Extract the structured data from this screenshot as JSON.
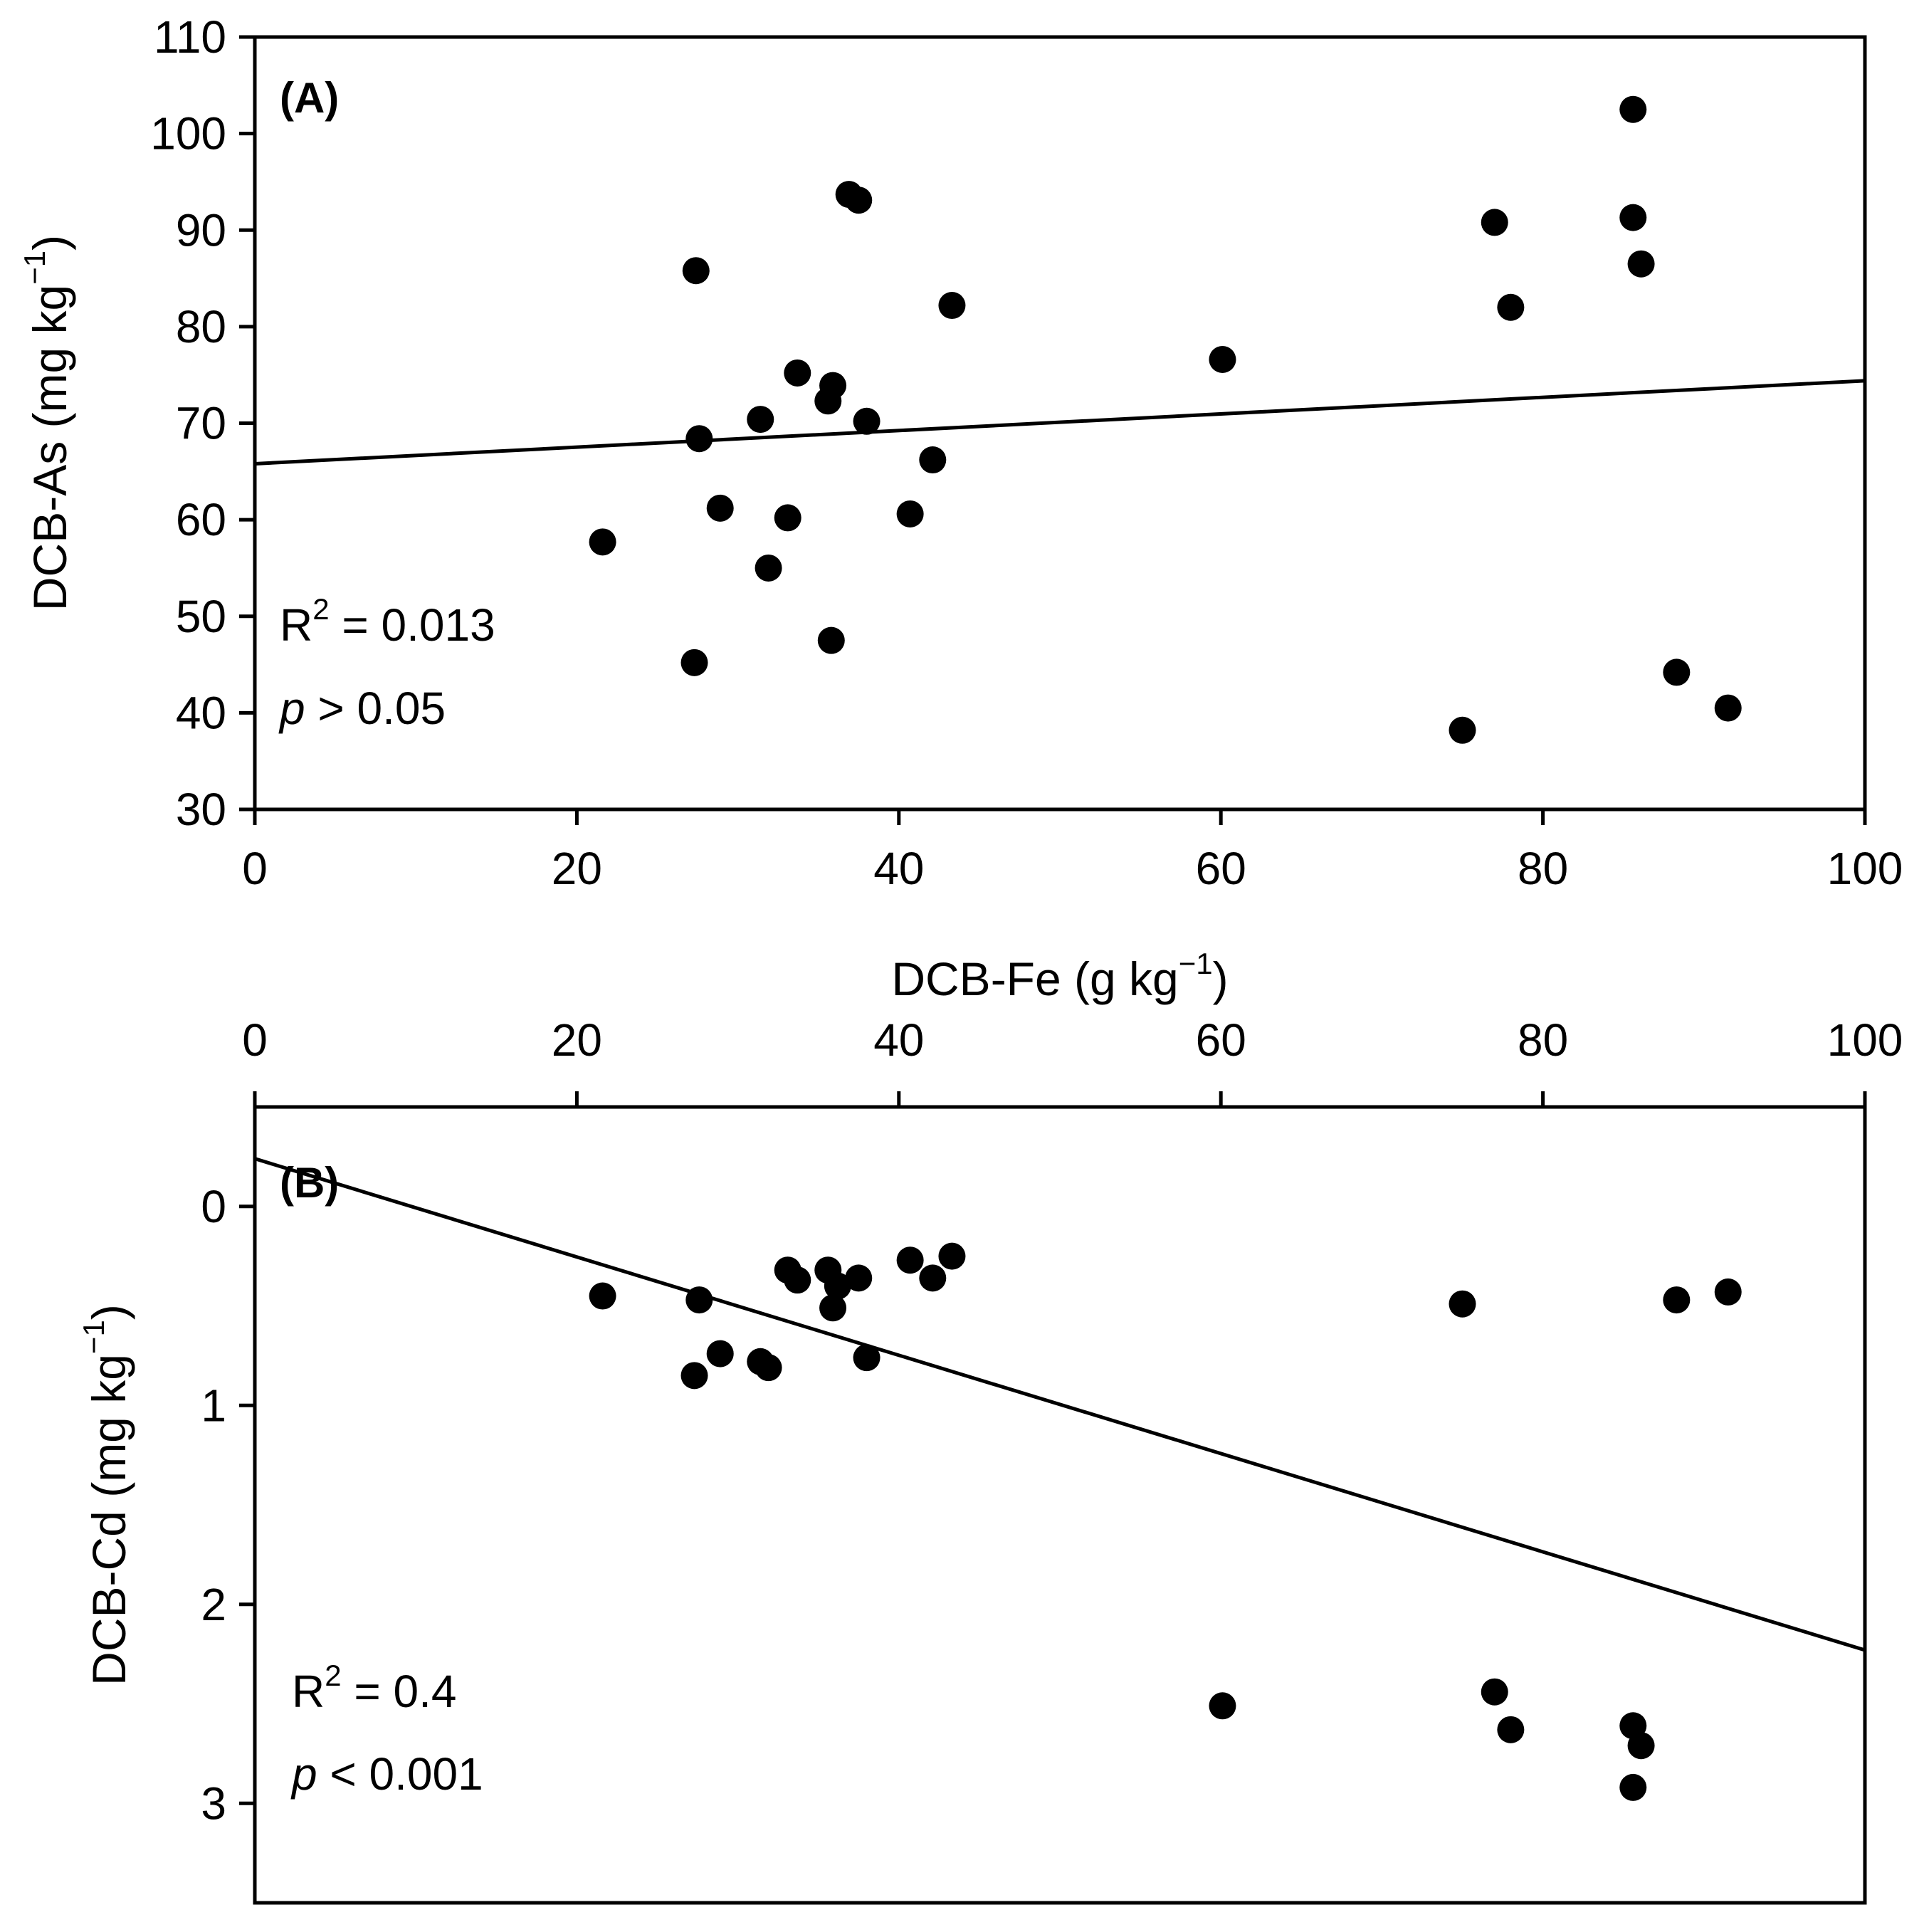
{
  "chart_data": [
    {
      "type": "scatter",
      "panel_label": "(A)",
      "ylabel_main": "DCB-As (mg kg",
      "ylabel_sup": "−1",
      "ylabel_close": ")",
      "xlabel_main": "DCB-Fe (g kg",
      "xlabel_sup": "−1",
      "xlabel_close": ")",
      "xlim": [
        0,
        100
      ],
      "ylim": [
        30,
        110
      ],
      "x_ticks": [
        0,
        20,
        40,
        60,
        80,
        100
      ],
      "x_tick_labels": [
        "0",
        "20",
        "40",
        "60",
        "80",
        "100"
      ],
      "y_ticks": [
        30,
        40,
        50,
        60,
        70,
        80,
        90,
        100,
        110
      ],
      "y_tick_labels": [
        "30",
        "40",
        "50",
        "60",
        "70",
        "80",
        "90",
        "100",
        "110"
      ],
      "points": [
        [
          21.6,
          57.7
        ],
        [
          27.4,
          85.8
        ],
        [
          27.3,
          45.2
        ],
        [
          27.6,
          68.4
        ],
        [
          28.9,
          61.2
        ],
        [
          31.4,
          70.4
        ],
        [
          31.9,
          55.0
        ],
        [
          33.1,
          60.2
        ],
        [
          33.7,
          75.2
        ],
        [
          35.6,
          72.3
        ],
        [
          35.9,
          73.9
        ],
        [
          35.8,
          47.5
        ],
        [
          36.9,
          93.7
        ],
        [
          37.5,
          93.1
        ],
        [
          38.0,
          70.2
        ],
        [
          40.7,
          60.6
        ],
        [
          42.1,
          66.2
        ],
        [
          43.3,
          82.2
        ],
        [
          60.1,
          76.6
        ],
        [
          75.0,
          38.2
        ],
        [
          77.0,
          90.8
        ],
        [
          78.0,
          82.0
        ],
        [
          85.6,
          102.5
        ],
        [
          85.6,
          91.3
        ],
        [
          86.1,
          86.5
        ],
        [
          88.3,
          44.2
        ],
        [
          91.5,
          40.5
        ]
      ],
      "trendline": {
        "x": [
          0,
          100
        ],
        "y": [
          65.8,
          74.4
        ]
      },
      "r2_prefix": "R",
      "r2_sup": "2",
      "r2_value": " = 0.013",
      "p_symbol": "p",
      "p_value": " > 0.05"
    },
    {
      "type": "scatter",
      "panel_label": "(B)",
      "ylabel_main": "DCB-Cd (mg kg",
      "ylabel_sup": "−1",
      "ylabel_close": ")",
      "xlim": [
        0,
        100
      ],
      "ylim": [
        -0.5,
        3.5
      ],
      "y_inverted": true,
      "x_axis_position": "top",
      "x_ticks": [
        0,
        20,
        40,
        60,
        80,
        100
      ],
      "x_tick_labels": [
        "0",
        "20",
        "40",
        "60",
        "80",
        "100"
      ],
      "y_ticks": [
        0,
        1,
        2,
        3
      ],
      "y_tick_labels": [
        "0",
        "1",
        "2",
        "3"
      ],
      "points": [
        [
          21.6,
          0.45
        ],
        [
          27.3,
          0.85
        ],
        [
          27.6,
          0.47
        ],
        [
          28.9,
          0.74
        ],
        [
          31.4,
          0.78
        ],
        [
          31.9,
          0.81
        ],
        [
          33.1,
          0.32
        ],
        [
          33.7,
          0.37
        ],
        [
          35.6,
          0.32
        ],
        [
          35.9,
          0.51
        ],
        [
          36.2,
          0.4
        ],
        [
          37.5,
          0.36
        ],
        [
          38.0,
          0.76
        ],
        [
          40.7,
          0.27
        ],
        [
          42.1,
          0.36
        ],
        [
          43.3,
          0.25
        ],
        [
          60.1,
          2.51
        ],
        [
          75.0,
          0.49
        ],
        [
          77.0,
          2.44
        ],
        [
          78.0,
          2.63
        ],
        [
          85.6,
          2.61
        ],
        [
          85.6,
          2.92
        ],
        [
          86.1,
          2.71
        ],
        [
          88.3,
          0.47
        ],
        [
          91.5,
          0.43
        ]
      ],
      "trendline": {
        "x": [
          0,
          100
        ],
        "y": [
          -0.24,
          2.23
        ]
      },
      "r2_prefix": "R",
      "r2_sup": "2",
      "r2_value": " = 0.4",
      "p_symbol": "p",
      "p_value": " < 0.001"
    }
  ]
}
